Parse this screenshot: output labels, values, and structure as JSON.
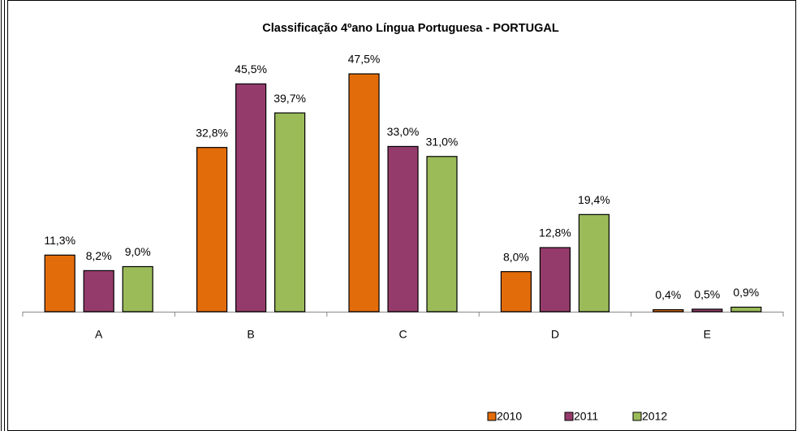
{
  "chart_data": {
    "type": "bar",
    "title": "Classificação 4ºano Língua Portuguesa -   PORTUGAL",
    "categories": [
      "A",
      "B",
      "C",
      "D",
      "E"
    ],
    "series": [
      {
        "name": "2010",
        "color": "#e36c0a",
        "values": [
          11.3,
          32.8,
          47.5,
          8.0,
          0.4
        ],
        "value_labels": [
          "11,3%",
          "32,8%",
          "47,5%",
          "8,0%",
          "0,4%"
        ]
      },
      {
        "name": "2011",
        "color": "#953b6b",
        "values": [
          8.2,
          45.5,
          33.0,
          12.8,
          0.5
        ],
        "value_labels": [
          "8,2%",
          "45,5%",
          "33,0%",
          "12,8%",
          "0,5%"
        ]
      },
      {
        "name": "2012",
        "color": "#9bbb59",
        "values": [
          9.0,
          39.7,
          31.0,
          19.4,
          0.9
        ],
        "value_labels": [
          "9,0%",
          "39,7%",
          "31,0%",
          "19,4%",
          "0,9%"
        ]
      }
    ],
    "legend": "bottom-right"
  }
}
